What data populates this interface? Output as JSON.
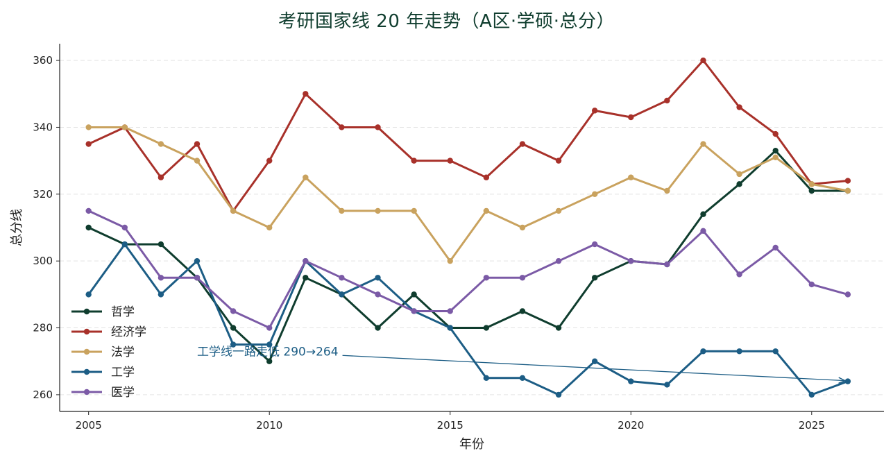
{
  "chart_data": {
    "type": "line",
    "title": "考研国家线 20 年走势（A区·学硕·总分）",
    "xlabel": "年份",
    "ylabel": "总分线",
    "xlim": [
      2004.2,
      2027.0
    ],
    "ylim": [
      255,
      365
    ],
    "xticks": [
      2005,
      2010,
      2015,
      2020,
      2025
    ],
    "yticks": [
      260,
      280,
      300,
      320,
      340,
      360
    ],
    "grid": "horizontal dashed",
    "legend_position": "lower-left",
    "x": [
      2005,
      2006,
      2007,
      2008,
      2009,
      2010,
      2011,
      2012,
      2013,
      2014,
      2015,
      2016,
      2017,
      2018,
      2019,
      2020,
      2021,
      2022,
      2023,
      2024,
      2025,
      2026
    ],
    "series": [
      {
        "name": "哲学",
        "color": "#0f3d2e",
        "values": [
          310,
          305,
          305,
          295,
          280,
          270,
          295,
          290,
          280,
          290,
          280,
          280,
          285,
          280,
          295,
          300,
          299,
          314,
          323,
          333,
          321,
          321
        ]
      },
      {
        "name": "经济学",
        "color": "#a8312a",
        "values": [
          335,
          340,
          325,
          335,
          315,
          330,
          350,
          340,
          340,
          330,
          330,
          325,
          335,
          330,
          345,
          343,
          348,
          360,
          346,
          338,
          323,
          324
        ]
      },
      {
        "name": "法学",
        "color": "#c9a25e",
        "values": [
          340,
          340,
          335,
          330,
          315,
          310,
          325,
          315,
          315,
          315,
          300,
          315,
          310,
          315,
          320,
          325,
          321,
          335,
          326,
          331,
          323,
          321
        ]
      },
      {
        "name": "工学",
        "color": "#1c5d85",
        "values": [
          290,
          305,
          290,
          300,
          275,
          275,
          300,
          290,
          295,
          285,
          280,
          265,
          265,
          260,
          270,
          264,
          263,
          273,
          273,
          273,
          260,
          264
        ]
      },
      {
        "name": "医学",
        "color": "#7b5aa6",
        "values": [
          315,
          310,
          295,
          295,
          285,
          280,
          300,
          295,
          290,
          285,
          285,
          295,
          295,
          300,
          305,
          300,
          299,
          309,
          296,
          304,
          293,
          290
        ]
      }
    ],
    "annotation": {
      "text": "工学线一路走低 290→264",
      "color": "#1c5d85",
      "text_anchor_data": [
        2008,
        273
      ],
      "arrow_target_data": [
        2026,
        264
      ]
    }
  }
}
